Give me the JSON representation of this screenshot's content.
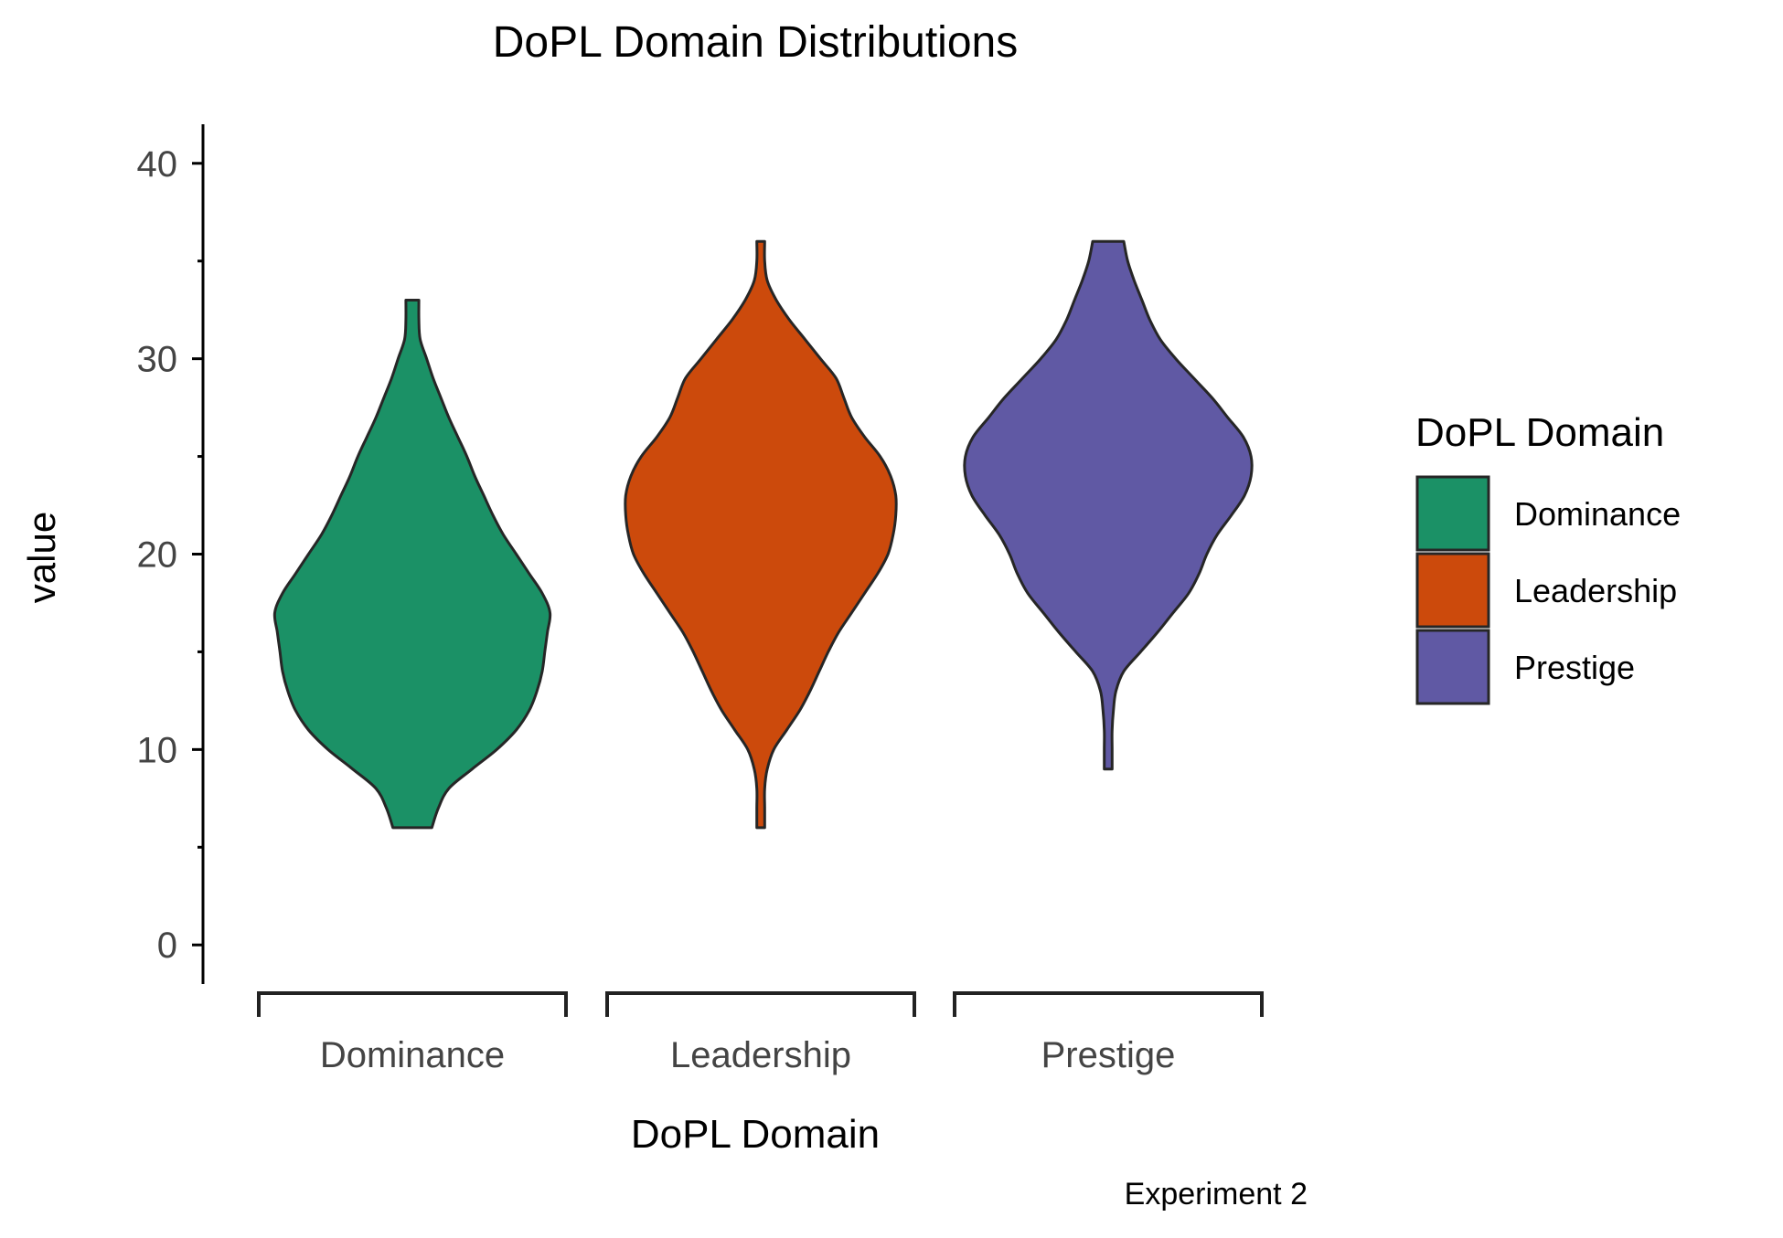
{
  "chart_data": {
    "type": "violin",
    "title": "DoPL Domain Distributions",
    "xlabel": "DoPL Domain",
    "ylabel": "value",
    "caption": "Experiment 2",
    "ylim": [
      -2,
      42
    ],
    "yticks": [
      0,
      10,
      20,
      30,
      40
    ],
    "categories": [
      "Dominance",
      "Leadership",
      "Prestige"
    ],
    "legend": {
      "title": "DoPL Domain",
      "placement": "right",
      "entries": [
        "Dominance",
        "Leadership",
        "Prestige"
      ]
    },
    "series": [
      {
        "name": "Dominance",
        "color": "#1b9166",
        "min": 6,
        "max": 33,
        "density": [
          [
            6,
            0.15
          ],
          [
            7,
            0.2
          ],
          [
            8,
            0.28
          ],
          [
            9,
            0.46
          ],
          [
            10,
            0.65
          ],
          [
            11,
            0.8
          ],
          [
            12,
            0.9
          ],
          [
            13,
            0.96
          ],
          [
            14,
            1.0
          ],
          [
            15,
            1.02
          ],
          [
            16,
            1.04
          ],
          [
            17,
            1.06
          ],
          [
            18,
            1.0
          ],
          [
            19,
            0.9
          ],
          [
            20,
            0.8
          ],
          [
            21,
            0.7
          ],
          [
            22,
            0.62
          ],
          [
            23,
            0.55
          ],
          [
            24,
            0.48
          ],
          [
            25,
            0.42
          ],
          [
            26,
            0.35
          ],
          [
            27,
            0.28
          ],
          [
            28,
            0.22
          ],
          [
            29,
            0.16
          ],
          [
            30,
            0.11
          ],
          [
            31,
            0.06
          ],
          [
            32,
            0.05
          ],
          [
            33,
            0.05
          ]
        ]
      },
      {
        "name": "Leadership",
        "color": "#cc4a0c",
        "min": 6,
        "max": 36,
        "density": [
          [
            6,
            0.03
          ],
          [
            7,
            0.03
          ],
          [
            8,
            0.03
          ],
          [
            9,
            0.05
          ],
          [
            10,
            0.1
          ],
          [
            11,
            0.2
          ],
          [
            12,
            0.3
          ],
          [
            13,
            0.38
          ],
          [
            14,
            0.45
          ],
          [
            15,
            0.52
          ],
          [
            16,
            0.6
          ],
          [
            17,
            0.7
          ],
          [
            18,
            0.8
          ],
          [
            19,
            0.9
          ],
          [
            20,
            0.98
          ],
          [
            21,
            1.02
          ],
          [
            22,
            1.04
          ],
          [
            23,
            1.04
          ],
          [
            24,
            1.0
          ],
          [
            25,
            0.92
          ],
          [
            26,
            0.8
          ],
          [
            27,
            0.7
          ],
          [
            28,
            0.64
          ],
          [
            29,
            0.58
          ],
          [
            30,
            0.46
          ],
          [
            31,
            0.34
          ],
          [
            32,
            0.22
          ],
          [
            33,
            0.12
          ],
          [
            34,
            0.05
          ],
          [
            35,
            0.03
          ],
          [
            36,
            0.03
          ]
        ]
      },
      {
        "name": "Prestige",
        "color": "#6059a4",
        "min": 9,
        "max": 36,
        "density": [
          [
            9,
            0.03
          ],
          [
            10,
            0.03
          ],
          [
            11,
            0.03
          ],
          [
            12,
            0.04
          ],
          [
            13,
            0.06
          ],
          [
            14,
            0.12
          ],
          [
            15,
            0.25
          ],
          [
            16,
            0.38
          ],
          [
            17,
            0.5
          ],
          [
            18,
            0.62
          ],
          [
            19,
            0.7
          ],
          [
            20,
            0.76
          ],
          [
            21,
            0.84
          ],
          [
            22,
            0.95
          ],
          [
            23,
            1.05
          ],
          [
            24,
            1.1
          ],
          [
            25,
            1.1
          ],
          [
            26,
            1.04
          ],
          [
            27,
            0.92
          ],
          [
            28,
            0.8
          ],
          [
            29,
            0.66
          ],
          [
            30,
            0.52
          ],
          [
            31,
            0.4
          ],
          [
            32,
            0.32
          ],
          [
            33,
            0.26
          ],
          [
            34,
            0.2
          ],
          [
            35,
            0.15
          ],
          [
            36,
            0.12
          ]
        ]
      }
    ]
  }
}
